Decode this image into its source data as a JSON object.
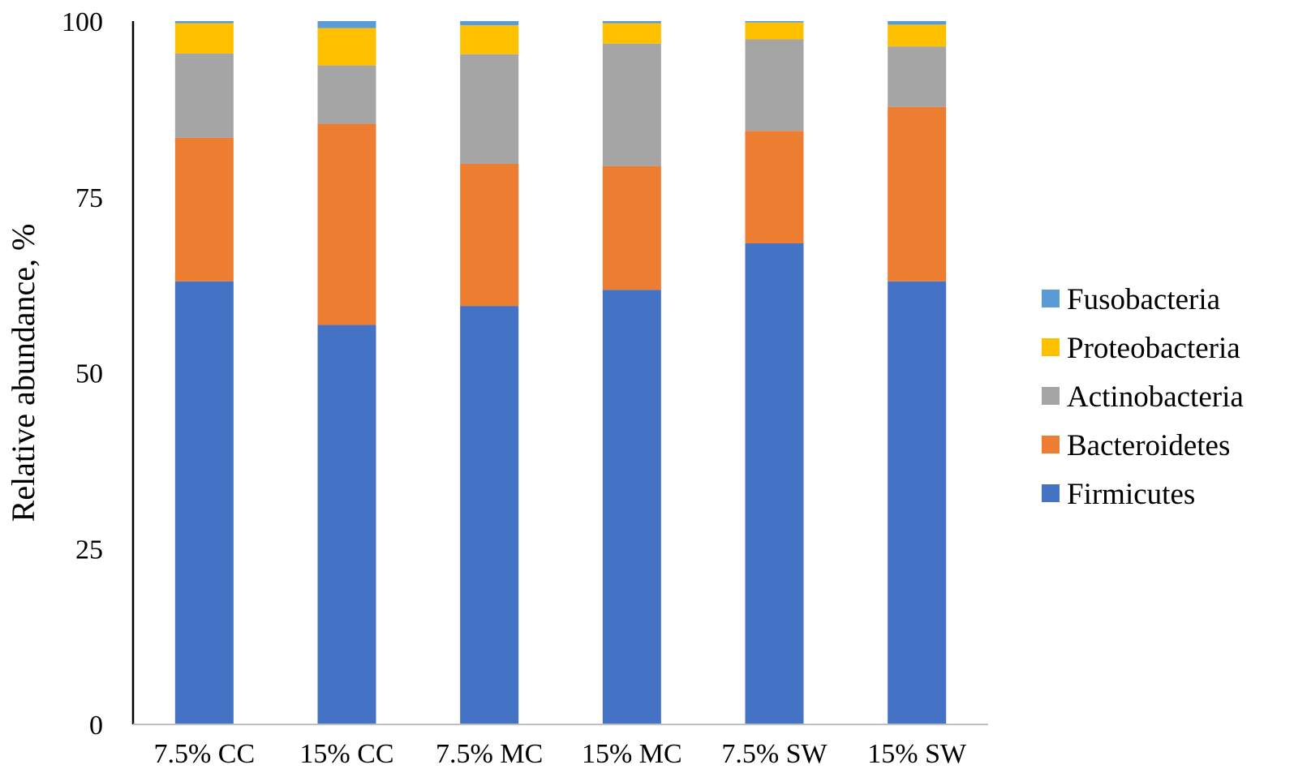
{
  "chart_data": {
    "type": "bar",
    "stacked": true,
    "title": "",
    "xlabel": "",
    "ylabel": "Relative abundance, %",
    "ylim": [
      0,
      100
    ],
    "yticks": [
      "0",
      "25",
      "50",
      "75",
      "100"
    ],
    "grid": false,
    "legend_position": "right",
    "categories": [
      "7.5% CC",
      "15% CC",
      "7.5% MC",
      "15% MC",
      "7.5% SW",
      "15% SW"
    ],
    "series": [
      {
        "name": "Firmicutes",
        "color": "#4472c4",
        "values": [
          63.0,
          56.8,
          59.5,
          61.8,
          68.4,
          63.0
        ]
      },
      {
        "name": "Bacteroidetes",
        "color": "#ed7d31",
        "values": [
          20.4,
          28.6,
          20.2,
          17.6,
          16.0,
          24.8
        ]
      },
      {
        "name": "Actinobacteria",
        "color": "#a5a5a5",
        "values": [
          12.0,
          8.3,
          15.6,
          17.4,
          13.0,
          8.6
        ]
      },
      {
        "name": "Proteobacteria",
        "color": "#ffc000",
        "values": [
          4.3,
          5.3,
          4.1,
          2.9,
          2.4,
          3.1
        ]
      },
      {
        "name": "Fusobacteria",
        "color": "#5b9bd5",
        "values": [
          0.3,
          1.0,
          0.6,
          0.3,
          0.2,
          0.5
        ]
      }
    ]
  }
}
